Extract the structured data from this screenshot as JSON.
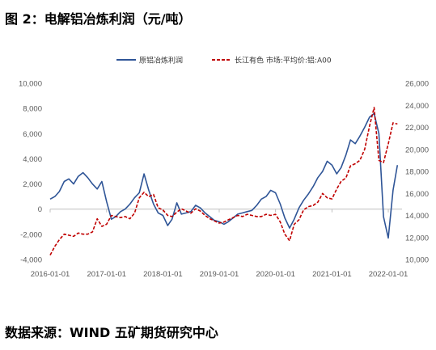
{
  "figure": {
    "title": "图 2：电解铝冶炼利润（元/吨）",
    "source": "数据来源：WIND 五矿期货研究中心"
  },
  "chart_data": {
    "type": "line",
    "title": "图 2：电解铝冶炼利润（元/吨）",
    "xlabel": "",
    "ylabel": "",
    "x_ticks": [
      "2016-01-01",
      "2017-01-01",
      "2018-01-01",
      "2019-01-01",
      "2020-01-01",
      "2021-01-01",
      "2022-01-01"
    ],
    "xlim": [
      "2016-01-01",
      "2022-03-31"
    ],
    "y_left": {
      "ticks": [
        -4000,
        -2000,
        0,
        2000,
        4000,
        6000,
        8000,
        10000
      ],
      "tick_labels": [
        "-4,000",
        "-2,000",
        "0",
        "2,000",
        "4,000",
        "6,000",
        "8,000",
        "10,000"
      ],
      "lim": [
        -4000,
        10000
      ]
    },
    "y_right": {
      "ticks": [
        10000,
        12000,
        14000,
        16000,
        18000,
        20000,
        22000,
        24000,
        26000
      ],
      "tick_labels": [
        "10,000",
        "12,000",
        "14,000",
        "16,000",
        "18,000",
        "20,000",
        "22,000",
        "24,000",
        "26,000"
      ],
      "lim": [
        10000,
        26000
      ]
    },
    "grid": false,
    "legend_position": "top",
    "series": [
      {
        "name": "原铝冶炼利润",
        "axis": "left",
        "color": "#2F5597",
        "style": "solid",
        "points": [
          [
            "2016-01-01",
            800
          ],
          [
            "2016-02-01",
            1000
          ],
          [
            "2016-03-01",
            1400
          ],
          [
            "2016-04-01",
            2200
          ],
          [
            "2016-05-01",
            2400
          ],
          [
            "2016-06-01",
            2000
          ],
          [
            "2016-07-01",
            2600
          ],
          [
            "2016-08-01",
            2900
          ],
          [
            "2016-09-01",
            2500
          ],
          [
            "2016-10-01",
            2000
          ],
          [
            "2016-11-01",
            1600
          ],
          [
            "2016-12-01",
            2200
          ],
          [
            "2017-01-01",
            600
          ],
          [
            "2017-02-01",
            -800
          ],
          [
            "2017-03-01",
            -600
          ],
          [
            "2017-04-01",
            -200
          ],
          [
            "2017-05-01",
            0
          ],
          [
            "2017-06-01",
            400
          ],
          [
            "2017-07-01",
            900
          ],
          [
            "2017-08-01",
            1300
          ],
          [
            "2017-09-01",
            2800
          ],
          [
            "2017-10-01",
            1500
          ],
          [
            "2017-11-01",
            400
          ],
          [
            "2017-12-01",
            -300
          ],
          [
            "2018-01-01",
            -500
          ],
          [
            "2018-02-01",
            -1300
          ],
          [
            "2018-03-01",
            -800
          ],
          [
            "2018-04-01",
            500
          ],
          [
            "2018-05-01",
            -400
          ],
          [
            "2018-06-01",
            -300
          ],
          [
            "2018-07-01",
            -200
          ],
          [
            "2018-08-01",
            300
          ],
          [
            "2018-09-01",
            100
          ],
          [
            "2018-10-01",
            -300
          ],
          [
            "2018-11-01",
            -600
          ],
          [
            "2018-12-01",
            -900
          ],
          [
            "2019-01-01",
            -1000
          ],
          [
            "2019-02-01",
            -1200
          ],
          [
            "2019-03-01",
            -1000
          ],
          [
            "2019-04-01",
            -700
          ],
          [
            "2019-05-01",
            -400
          ],
          [
            "2019-06-01",
            -300
          ],
          [
            "2019-07-01",
            -200
          ],
          [
            "2019-08-01",
            -100
          ],
          [
            "2019-09-01",
            300
          ],
          [
            "2019-10-01",
            800
          ],
          [
            "2019-11-01",
            1000
          ],
          [
            "2019-12-01",
            1500
          ],
          [
            "2020-01-01",
            1300
          ],
          [
            "2020-02-01",
            400
          ],
          [
            "2020-03-01",
            -700
          ],
          [
            "2020-04-01",
            -1500
          ],
          [
            "2020-05-01",
            -800
          ],
          [
            "2020-06-01",
            100
          ],
          [
            "2020-07-01",
            700
          ],
          [
            "2020-08-01",
            1200
          ],
          [
            "2020-09-01",
            1800
          ],
          [
            "2020-10-01",
            2500
          ],
          [
            "2020-11-01",
            3000
          ],
          [
            "2020-12-01",
            3800
          ],
          [
            "2021-01-01",
            3500
          ],
          [
            "2021-02-01",
            2800
          ],
          [
            "2021-03-01",
            3300
          ],
          [
            "2021-04-01",
            4300
          ],
          [
            "2021-05-01",
            5500
          ],
          [
            "2021-06-01",
            5200
          ],
          [
            "2021-07-01",
            5800
          ],
          [
            "2021-08-01",
            6500
          ],
          [
            "2021-09-01",
            7300
          ],
          [
            "2021-10-01",
            7600
          ],
          [
            "2021-11-01",
            6000
          ],
          [
            "2021-12-01",
            -600
          ],
          [
            "2022-01-01",
            -2300
          ],
          [
            "2022-02-01",
            1500
          ],
          [
            "2022-03-01",
            3500
          ]
        ]
      },
      {
        "name": "长江有色 市场:平均价:铝:A00",
        "axis": "right",
        "color": "#C00000",
        "style": "dashed",
        "points": [
          [
            "2016-01-01",
            10400
          ],
          [
            "2016-02-01",
            11200
          ],
          [
            "2016-03-01",
            11800
          ],
          [
            "2016-04-01",
            12300
          ],
          [
            "2016-05-01",
            12200
          ],
          [
            "2016-06-01",
            12100
          ],
          [
            "2016-07-01",
            12400
          ],
          [
            "2016-08-01",
            12300
          ],
          [
            "2016-09-01",
            12300
          ],
          [
            "2016-10-01",
            12500
          ],
          [
            "2016-11-01",
            13700
          ],
          [
            "2016-12-01",
            13000
          ],
          [
            "2017-01-01",
            13200
          ],
          [
            "2017-02-01",
            14000
          ],
          [
            "2017-03-01",
            13900
          ],
          [
            "2017-04-01",
            13800
          ],
          [
            "2017-05-01",
            13900
          ],
          [
            "2017-06-01",
            13700
          ],
          [
            "2017-07-01",
            14200
          ],
          [
            "2017-08-01",
            15600
          ],
          [
            "2017-09-01",
            16100
          ],
          [
            "2017-10-01",
            15700
          ],
          [
            "2017-11-01",
            15900
          ],
          [
            "2017-12-01",
            14700
          ],
          [
            "2018-01-01",
            14500
          ],
          [
            "2018-02-01",
            14000
          ],
          [
            "2018-03-01",
            13900
          ],
          [
            "2018-04-01",
            14300
          ],
          [
            "2018-05-01",
            14600
          ],
          [
            "2018-06-01",
            14400
          ],
          [
            "2018-07-01",
            14200
          ],
          [
            "2018-08-01",
            14600
          ],
          [
            "2018-09-01",
            14400
          ],
          [
            "2018-10-01",
            14000
          ],
          [
            "2018-11-01",
            13700
          ],
          [
            "2018-12-01",
            13500
          ],
          [
            "2019-01-01",
            13300
          ],
          [
            "2019-02-01",
            13400
          ],
          [
            "2019-03-01",
            13600
          ],
          [
            "2019-04-01",
            13800
          ],
          [
            "2019-05-01",
            14000
          ],
          [
            "2019-06-01",
            13900
          ],
          [
            "2019-07-01",
            14100
          ],
          [
            "2019-08-01",
            14000
          ],
          [
            "2019-09-01",
            13900
          ],
          [
            "2019-10-01",
            13900
          ],
          [
            "2019-11-01",
            14100
          ],
          [
            "2019-12-01",
            14000
          ],
          [
            "2020-01-01",
            14100
          ],
          [
            "2020-02-01",
            13400
          ],
          [
            "2020-03-01",
            12300
          ],
          [
            "2020-04-01",
            11700
          ],
          [
            "2020-05-01",
            13200
          ],
          [
            "2020-06-01",
            13600
          ],
          [
            "2020-07-01",
            14500
          ],
          [
            "2020-08-01",
            14800
          ],
          [
            "2020-09-01",
            14900
          ],
          [
            "2020-10-01",
            15200
          ],
          [
            "2020-11-01",
            16000
          ],
          [
            "2020-12-01",
            15600
          ],
          [
            "2021-01-01",
            15500
          ],
          [
            "2021-02-01",
            16400
          ],
          [
            "2021-03-01",
            17100
          ],
          [
            "2021-04-01",
            17400
          ],
          [
            "2021-05-01",
            18500
          ],
          [
            "2021-06-01",
            18700
          ],
          [
            "2021-07-01",
            19000
          ],
          [
            "2021-08-01",
            20000
          ],
          [
            "2021-09-01",
            22100
          ],
          [
            "2021-10-01",
            23800
          ],
          [
            "2021-11-01",
            19000
          ],
          [
            "2021-12-01",
            18800
          ],
          [
            "2022-01-01",
            20500
          ],
          [
            "2022-02-01",
            22400
          ],
          [
            "2022-03-01",
            22300
          ]
        ]
      }
    ]
  }
}
